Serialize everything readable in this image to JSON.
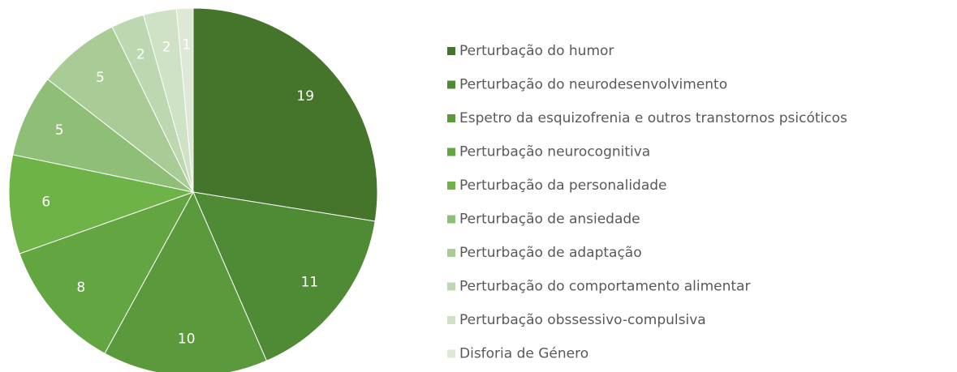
{
  "chart_data": {
    "type": "pie",
    "categories": [
      "Perturbação do humor",
      "Perturbação do neurodesenvolvimento",
      "Espetro da esquizofrenia e outros transtornos psicóticos",
      "Perturbação neurocognitiva",
      "Perturbação da personalidade",
      "Perturbação de ansiedade",
      "Perturbação de adaptação",
      "Perturbação do comportamento alimentar",
      "Perturbação obssessivo-compulsiva",
      "Disforia de Género"
    ],
    "values": [
      19,
      11,
      10,
      8,
      6,
      5,
      5,
      2,
      2,
      1
    ],
    "colors": [
      "#44752a",
      "#4f8a34",
      "#5a9a3c",
      "#62a541",
      "#6db347",
      "#8fbf76",
      "#a9cc97",
      "#bdd8b0",
      "#cfe2c5",
      "#dde9d6"
    ],
    "legend": "right"
  }
}
